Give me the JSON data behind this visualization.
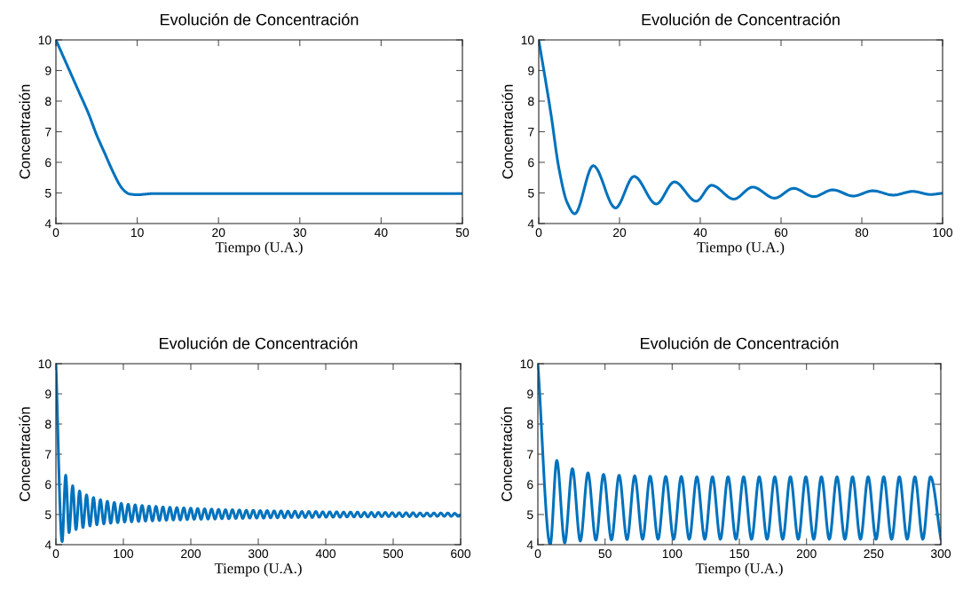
{
  "chart_data": [
    {
      "type": "line",
      "title": "Evolución de Concentración",
      "xlabel": "Tiempo (U.A.)",
      "ylabel": "Concentración",
      "xlim": [
        0,
        50
      ],
      "ylim": [
        4,
        10
      ],
      "xticks": [
        0,
        10,
        20,
        30,
        40,
        50
      ],
      "yticks": [
        4,
        5,
        6,
        7,
        8,
        9,
        10
      ],
      "series": [
        {
          "color": "#0072bd",
          "x": [
            0,
            1,
            2,
            3,
            4,
            5,
            6,
            7,
            8,
            8.5,
            9,
            10,
            11,
            12,
            15,
            50
          ],
          "values": [
            10,
            9.4,
            8.8,
            8.2,
            7.6,
            6.9,
            6.3,
            5.7,
            5.2,
            5.05,
            4.97,
            4.94,
            4.96,
            4.98,
            4.98,
            4.98
          ]
        }
      ]
    },
    {
      "type": "line",
      "title": "Evolución de Concentración",
      "xlabel": "Tiempo (U.A.)",
      "ylabel": "Concentración",
      "xlim": [
        0,
        100
      ],
      "ylim": [
        4,
        10
      ],
      "xticks": [
        0,
        20,
        40,
        60,
        80,
        100
      ],
      "yticks": [
        4,
        5,
        6,
        7,
        8,
        9,
        10
      ],
      "series": [
        {
          "color": "#0072bd",
          "x": [
            0,
            3,
            5,
            7,
            8.9,
            13.5,
            19.0,
            23.6,
            29.1,
            33.6,
            39.0,
            42.8,
            48.3,
            53.0,
            58.4,
            63.1,
            68.1,
            72.8,
            77.9,
            82.7,
            87.8,
            92.6,
            97.0,
            100
          ],
          "values": [
            10,
            7.6,
            5.8,
            4.7,
            4.32,
            5.89,
            4.51,
            5.54,
            4.64,
            5.36,
            4.73,
            5.25,
            4.8,
            5.19,
            4.83,
            5.15,
            4.88,
            5.1,
            4.9,
            5.07,
            4.93,
            5.05,
            4.95,
            4.99
          ]
        }
      ]
    },
    {
      "type": "line",
      "title": "Evolución de Concentración",
      "xlabel": "Tiempo (U.A.)",
      "ylabel": "Concentración",
      "xlim": [
        0,
        600
      ],
      "ylim": [
        4,
        10
      ],
      "xticks": [
        0,
        100,
        200,
        300,
        400,
        500,
        600
      ],
      "yticks": [
        4,
        5,
        6,
        7,
        8,
        9,
        10
      ],
      "series": [
        {
          "color": "#0072bd",
          "x": [
            0,
            9.2,
            14.5,
            19.5,
            24.8,
            29.8,
            35.1,
            40.1,
            45.4,
            50.4,
            55.7,
            60.7,
            66.0,
            71.0,
            76.3,
            81.3,
            86.6,
            91.6,
            96.9,
            101.9,
            107.2,
            112.2,
            117.5,
            122.5,
            127.8,
            132.8,
            138.1,
            143.1,
            148.4,
            153.4,
            158.7,
            163.7,
            169.0,
            174.0,
            179.3,
            184.3,
            189.6,
            194.6,
            199.9,
            204.9,
            210.2,
            215.2,
            220.5,
            225.5,
            230.8,
            235.8,
            241.1,
            246.1,
            251.4,
            256.4,
            261.7,
            266.7,
            272.0,
            277.0,
            282.3,
            287.3,
            292.6,
            297.6,
            302.9,
            307.9,
            313.2,
            318.2,
            323.5,
            328.5,
            333.8,
            338.8,
            344.1,
            349.1,
            354.4,
            359.4,
            364.7,
            369.7,
            375.0,
            380.0,
            385.3,
            390.3,
            395.6,
            400.6,
            405.9,
            410.9,
            416.2,
            421.2,
            426.5,
            431.5,
            436.8,
            441.8,
            447.1,
            452.1,
            457.4,
            462.4,
            467.7,
            472.7,
            478.0,
            483.0,
            488.3,
            493.3,
            498.6,
            503.6,
            508.9,
            513.9,
            519.2,
            524.2,
            529.5,
            534.5,
            539.8,
            544.8,
            550.1,
            555.1,
            560.4,
            565.4,
            570.7,
            575.7,
            581.0,
            586.0,
            591.3,
            596.3,
            600
          ],
          "values": [
            10,
            4.1,
            6.3,
            4.4,
            5.95,
            4.5,
            5.78,
            4.57,
            5.65,
            4.62,
            5.56,
            4.66,
            5.49,
            4.69,
            5.44,
            4.71,
            5.4,
            4.73,
            5.37,
            4.75,
            5.34,
            4.76,
            5.32,
            4.77,
            5.3,
            4.78,
            5.28,
            4.79,
            5.27,
            4.8,
            5.25,
            4.81,
            5.24,
            4.82,
            5.23,
            4.82,
            5.22,
            4.83,
            5.21,
            4.84,
            5.2,
            4.84,
            5.19,
            4.85,
            5.18,
            4.85,
            5.17,
            4.86,
            5.16,
            4.86,
            5.16,
            4.87,
            5.15,
            4.87,
            5.14,
            4.88,
            5.14,
            4.88,
            5.13,
            4.88,
            5.13,
            4.89,
            5.12,
            4.89,
            5.12,
            4.89,
            5.11,
            4.9,
            5.11,
            4.9,
            5.1,
            4.9,
            5.1,
            4.9,
            5.1,
            4.91,
            5.09,
            4.91,
            5.09,
            4.91,
            5.09,
            4.91,
            5.08,
            4.92,
            5.08,
            4.92,
            5.08,
            4.92,
            5.07,
            4.92,
            5.07,
            4.92,
            5.07,
            4.93,
            5.07,
            4.93,
            5.06,
            4.93,
            5.06,
            4.93,
            5.06,
            4.93,
            5.06,
            4.93,
            5.05,
            4.94,
            5.05,
            4.94,
            5.05,
            4.94,
            5.05,
            4.94,
            5.05,
            4.94,
            5.04,
            4.94,
            4.99
          ]
        }
      ]
    },
    {
      "type": "line",
      "title": "Evolución de Concentración",
      "xlabel": "Tiempo (U.A.)",
      "ylabel": "Concentración",
      "xlim": [
        0,
        300
      ],
      "ylim": [
        4,
        10
      ],
      "xticks": [
        0,
        50,
        100,
        150,
        200,
        250,
        300
      ],
      "yticks": [
        4,
        5,
        6,
        7,
        8,
        9,
        10
      ],
      "series": [
        {
          "color": "#0072bd",
          "x": [
            0,
            9.2,
            14.1,
            20.0,
            25.7,
            31.6,
            37.3,
            43.2,
            48.9,
            54.8,
            60.5,
            66.4,
            72.1,
            78.0,
            83.6,
            89.5,
            95.2,
            101.1,
            106.8,
            112.7,
            118.4,
            124.3,
            130.0,
            135.9,
            141.6,
            147.5,
            153.2,
            159.1,
            164.8,
            170.7,
            176.4,
            182.3,
            188.0,
            193.9,
            199.5,
            205.4,
            211.1,
            217.0,
            222.7,
            228.6,
            234.3,
            240.2,
            245.9,
            251.8,
            257.5,
            263.4,
            269.1,
            275.0,
            280.7,
            286.6,
            292.3,
            300
          ],
          "values": [
            10,
            4.0,
            6.79,
            4.06,
            6.52,
            4.12,
            6.38,
            4.15,
            6.33,
            4.16,
            6.3,
            4.17,
            6.28,
            4.18,
            6.27,
            4.18,
            6.26,
            4.18,
            6.26,
            4.18,
            6.25,
            4.18,
            6.25,
            4.18,
            6.25,
            4.18,
            6.25,
            4.18,
            6.25,
            4.18,
            6.25,
            4.18,
            6.25,
            4.18,
            6.25,
            4.18,
            6.25,
            4.18,
            6.25,
            4.18,
            6.25,
            4.18,
            6.25,
            4.18,
            6.25,
            4.18,
            6.25,
            4.18,
            6.25,
            4.18,
            6.25,
            4.2
          ]
        }
      ]
    }
  ]
}
